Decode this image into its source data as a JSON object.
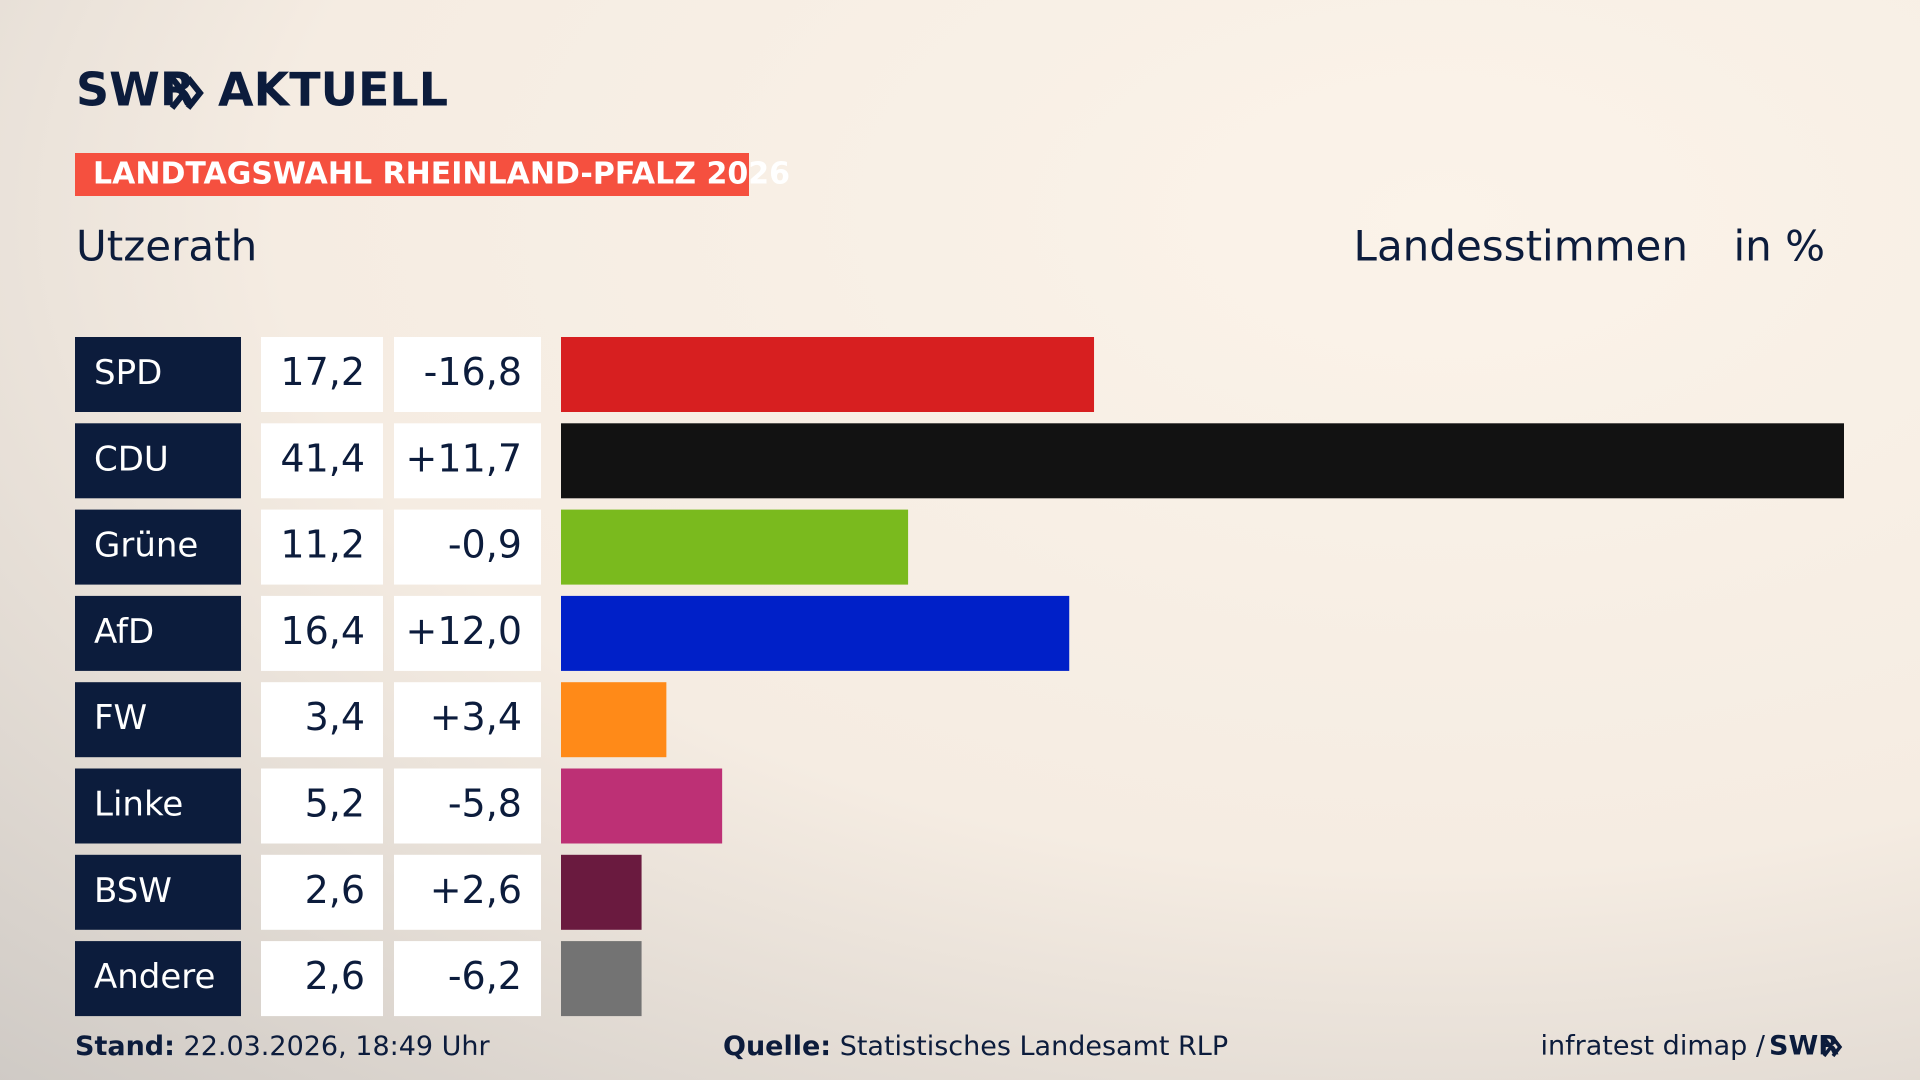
{
  "chart_data": {
    "type": "bar",
    "logo": "SWR",
    "logo_suffix": "AKTUELL",
    "subtitle": "LANDTAGSWAHL RHEINLAND-PFALZ 2026",
    "title": "Utzerath",
    "measure": "Landesstimmen",
    "unit": "in %",
    "categories": [
      "SPD",
      "CDU",
      "Grüne",
      "AfD",
      "FW",
      "Linke",
      "BSW",
      "Andere"
    ],
    "values": [
      17.2,
      41.4,
      11.2,
      16.4,
      3.4,
      5.2,
      2.6,
      2.6
    ],
    "value_labels": [
      "17,2",
      "41,4",
      "11,2",
      "16,4",
      "3,4",
      "5,2",
      "2,6",
      "2,6"
    ],
    "changes": [
      -16.8,
      11.7,
      -0.9,
      12.0,
      3.4,
      -5.8,
      2.6,
      -6.2
    ],
    "change_labels": [
      "-16,8",
      "+11,7",
      "-0,9",
      "+12,0",
      "+3,4",
      "-5,8",
      "+2,6",
      "-6,2"
    ],
    "colors": [
      "#d71f20",
      "#121212",
      "#7aba1e",
      "#0020c8",
      "#ff8a18",
      "#bd3075",
      "#6a1a3f",
      "#737373"
    ],
    "footer": {
      "stand_label": "Stand:",
      "stand": "22.03.2026, 18:49 Uhr",
      "source_label": "Quelle:",
      "source": "Statistisches Landesamt RLP",
      "credit": "infratest dimap /"
    }
  }
}
